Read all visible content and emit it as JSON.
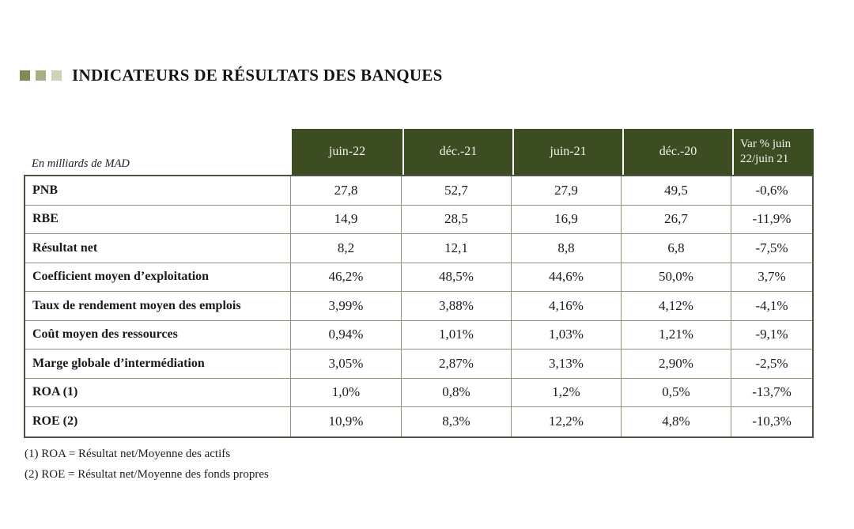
{
  "page": {
    "title": "INDICATEURS DE RÉSULTATS DES BANQUES",
    "accent_colors": {
      "dark": "#7d8b55",
      "medium": "#a3b184",
      "light": "#cbd4b4"
    },
    "header_bg_color": "#3d4d22"
  },
  "table": {
    "unit_label": "En milliards de MAD",
    "columns": [
      "juin-22",
      "déc.-21",
      "juin-21",
      "déc.-20",
      "Var % juin 22/juin 21"
    ],
    "rows": [
      {
        "label": "PNB",
        "values": [
          "27,8",
          "52,7",
          "27,9",
          "49,5",
          "-0,6%"
        ]
      },
      {
        "label": "RBE",
        "values": [
          "14,9",
          "28,5",
          "16,9",
          "26,7",
          "-11,9%"
        ]
      },
      {
        "label": "Résultat net",
        "values": [
          "8,2",
          "12,1",
          "8,8",
          "6,8",
          "-7,5%"
        ]
      },
      {
        "label": "Coefficient moyen d’exploitation",
        "values": [
          "46,2%",
          "48,5%",
          "44,6%",
          "50,0%",
          "3,7%"
        ]
      },
      {
        "label": "Taux de rendement moyen des emplois",
        "values": [
          "3,99%",
          "3,88%",
          "4,16%",
          "4,12%",
          "-4,1%"
        ]
      },
      {
        "label": "Coût moyen des ressources",
        "values": [
          "0,94%",
          "1,01%",
          "1,03%",
          "1,21%",
          "-9,1%"
        ]
      },
      {
        "label": "Marge globale d’intermédiation",
        "values": [
          "3,05%",
          "2,87%",
          "3,13%",
          "2,90%",
          "-2,5%"
        ]
      },
      {
        "label": "ROA (1)",
        "values": [
          "1,0%",
          "0,8%",
          "1,2%",
          "0,5%",
          "-13,7%"
        ]
      },
      {
        "label": "ROE (2)",
        "values": [
          "10,9%",
          "8,3%",
          "12,2%",
          "4,8%",
          "-10,3%"
        ]
      }
    ],
    "footnotes": [
      "(1) ROA = Résultat net/Moyenne des actifs",
      "(2) ROE = Résultat net/Moyenne des fonds propres"
    ]
  }
}
